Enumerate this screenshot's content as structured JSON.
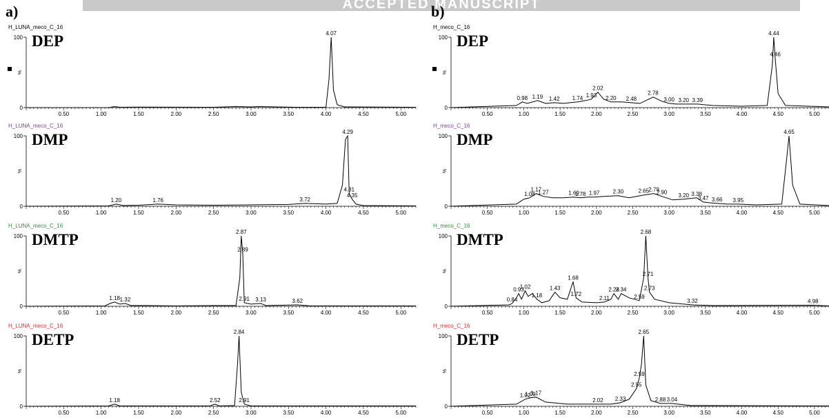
{
  "banner_text": "ACCEPTED MANUSCRIPT",
  "panel_letters": [
    "a)",
    "b)"
  ],
  "colors": {
    "trace": "#000000",
    "label_default": "#000000",
    "label_dmp": "#7b3f8f",
    "label_dmtp": "#2e8b3a",
    "label_detp": "#e0262b",
    "banner": "#c9c9c9"
  },
  "chart_data": [
    {
      "type": "line",
      "panel": "a",
      "label": "H_LUNA_meco_C_16",
      "label_color": "label_default",
      "compound": "DEP",
      "xlim": [
        0,
        5.2
      ],
      "ylim": [
        0,
        100
      ],
      "x_ticks": [
        "0.50",
        "1.00",
        "1.50",
        "2.00",
        "2.50",
        "3.00",
        "3.50",
        "4.00",
        "4.50",
        "5.00"
      ],
      "y_tick_labels": [
        "100",
        "%",
        "0"
      ],
      "marker": true,
      "series": [
        {
          "x": [
            0,
            1.1,
            1.18,
            1.25,
            1.5,
            2.0,
            2.5,
            2.8,
            3.0,
            3.1,
            3.6,
            4.0,
            4.04,
            4.07,
            4.1,
            4.15,
            4.25,
            5.2
          ],
          "y": [
            0,
            0,
            1.5,
            0.5,
            0.8,
            0.6,
            0.5,
            1.5,
            1,
            1.5,
            0.5,
            0.5,
            40,
            100,
            25,
            4,
            1,
            0.5
          ]
        }
      ],
      "peaks": [
        {
          "x": 4.07,
          "y": 100,
          "label": "4.07"
        }
      ]
    },
    {
      "type": "line",
      "panel": "a",
      "label": "H_LUNA_meco_C_16",
      "label_color": "label_dmp",
      "compound": "DMP",
      "xlim": [
        0,
        5.2
      ],
      "ylim": [
        0,
        100
      ],
      "x_ticks": [
        "0.50",
        "1.00",
        "1.50",
        "2.00",
        "2.50",
        "3.00",
        "3.50",
        "4.00",
        "4.50",
        "5.00"
      ],
      "y_tick_labels": [
        "100",
        "%",
        "0"
      ],
      "marker": false,
      "series": [
        {
          "x": [
            0,
            1.1,
            1.2,
            1.3,
            1.5,
            1.76,
            2.0,
            2.5,
            3.0,
            3.5,
            3.72,
            4.0,
            4.15,
            4.22,
            4.26,
            4.29,
            4.31,
            4.35,
            4.4,
            4.5,
            5.2
          ],
          "y": [
            0,
            0.5,
            3,
            1,
            1.5,
            3,
            2,
            1.5,
            2,
            2.5,
            4,
            3,
            4,
            30,
            95,
            100,
            18,
            10,
            3,
            1,
            0.5
          ]
        }
      ],
      "peaks": [
        {
          "x": 1.2,
          "y": 3,
          "label": "1.20"
        },
        {
          "x": 1.76,
          "y": 3,
          "label": "1.76"
        },
        {
          "x": 3.72,
          "y": 4,
          "label": "3.72"
        },
        {
          "x": 4.29,
          "y": 100,
          "label": "4.29"
        },
        {
          "x": 4.31,
          "y": 18,
          "label": "4.31"
        },
        {
          "x": 4.35,
          "y": 10,
          "label": "4.35"
        }
      ]
    },
    {
      "type": "line",
      "panel": "a",
      "label": "H_LUNA_meco_C_16",
      "label_color": "label_dmtp",
      "compound": "DMTP",
      "xlim": [
        0,
        5.2
      ],
      "ylim": [
        0,
        100
      ],
      "x_ticks": [
        "0.50",
        "1.00",
        "1.50",
        "2.00",
        "2.50",
        "3.00",
        "3.50",
        "4.00",
        "4.50",
        "5.00"
      ],
      "y_tick_labels": [
        "100",
        "%",
        "0"
      ],
      "marker": false,
      "series": [
        {
          "x": [
            0,
            1.05,
            1.12,
            1.18,
            1.25,
            1.32,
            1.4,
            1.6,
            2.0,
            2.5,
            2.8,
            2.85,
            2.87,
            2.89,
            2.91,
            3.0,
            3.13,
            3.2,
            3.62,
            3.8,
            5.2
          ],
          "y": [
            0,
            0.5,
            4,
            6,
            3,
            4,
            1,
            1,
            0.5,
            1,
            1,
            40,
            100,
            75,
            5,
            3,
            4,
            1,
            2,
            0.5,
            0.5
          ]
        }
      ],
      "peaks": [
        {
          "x": 1.18,
          "y": 6,
          "label": "1.18"
        },
        {
          "x": 1.32,
          "y": 4,
          "label": "1.32"
        },
        {
          "x": 2.87,
          "y": 100,
          "label": "2.87"
        },
        {
          "x": 2.89,
          "y": 75,
          "label": "2.89"
        },
        {
          "x": 2.91,
          "y": 5,
          "label": "2.91"
        },
        {
          "x": 3.13,
          "y": 4,
          "label": "3.13"
        },
        {
          "x": 3.62,
          "y": 2,
          "label": "3.62"
        }
      ]
    },
    {
      "type": "line",
      "panel": "a",
      "label": "H_LUNA_meco_C_16",
      "label_color": "label_detp",
      "compound": "DETP",
      "xlim": [
        0,
        5.2
      ],
      "ylim": [
        0,
        100
      ],
      "x_ticks": [
        "0.50",
        "1.00",
        "1.50",
        "2.00",
        "2.50",
        "3.00",
        "3.50",
        "4.00",
        "4.50",
        "5.00"
      ],
      "y_tick_labels": [
        "100",
        "%",
        "0"
      ],
      "marker": false,
      "series": [
        {
          "x": [
            0,
            1.1,
            1.18,
            1.25,
            2.45,
            2.52,
            2.58,
            2.78,
            2.82,
            2.84,
            2.87,
            2.91,
            3.0,
            5.2
          ],
          "y": [
            0,
            0.5,
            3,
            0.5,
            0.5,
            3,
            0.5,
            1,
            60,
            100,
            20,
            3,
            0.5,
            0.5
          ]
        }
      ],
      "peaks": [
        {
          "x": 1.18,
          "y": 3,
          "label": "1.18"
        },
        {
          "x": 2.52,
          "y": 3,
          "label": "2.52"
        },
        {
          "x": 2.84,
          "y": 100,
          "label": "2.84"
        },
        {
          "x": 2.91,
          "y": 3,
          "label": "2.91"
        }
      ]
    },
    {
      "type": "line",
      "panel": "b",
      "label": "H_meco_C_16",
      "label_color": "label_default",
      "compound": "DEP",
      "xlim": [
        0,
        5.2
      ],
      "ylim": [
        0,
        100
      ],
      "x_ticks": [
        "0.50",
        "1.00",
        "1.50",
        "2.00",
        "2.50",
        "3.00",
        "3.50",
        "4.00",
        "4.50",
        "5.00"
      ],
      "y_tick_labels": [
        "100",
        "%",
        "0"
      ],
      "marker": true,
      "series": [
        {
          "x": [
            0,
            0.9,
            0.98,
            1.05,
            1.19,
            1.3,
            1.42,
            1.55,
            1.74,
            1.85,
            1.93,
            2.02,
            2.1,
            2.2,
            2.35,
            2.48,
            2.6,
            2.78,
            2.9,
            3.0,
            3.1,
            3.2,
            3.3,
            3.39,
            3.6,
            4.0,
            4.35,
            4.42,
            4.44,
            4.46,
            4.5,
            4.6,
            5.2
          ],
          "y": [
            0,
            3,
            8,
            6,
            10,
            6,
            7,
            6,
            8,
            10,
            12,
            22,
            12,
            8,
            8,
            7,
            6,
            15,
            9,
            6,
            5,
            5,
            5,
            5,
            3,
            2,
            3,
            60,
            100,
            70,
            20,
            3,
            1
          ]
        }
      ],
      "peaks": [
        {
          "x": 0.98,
          "y": 8,
          "label": "0.98"
        },
        {
          "x": 1.19,
          "y": 10,
          "label": "1.19"
        },
        {
          "x": 1.42,
          "y": 7,
          "label": "1.42"
        },
        {
          "x": 1.74,
          "y": 8,
          "label": "1.74"
        },
        {
          "x": 1.93,
          "y": 12,
          "label": "1.93"
        },
        {
          "x": 2.02,
          "y": 22,
          "label": "2.02"
        },
        {
          "x": 2.2,
          "y": 8,
          "label": "2.20"
        },
        {
          "x": 2.48,
          "y": 7,
          "label": "2.48"
        },
        {
          "x": 2.78,
          "y": 15,
          "label": "2.78"
        },
        {
          "x": 3.0,
          "y": 6,
          "label": "3.00"
        },
        {
          "x": 3.2,
          "y": 5,
          "label": "3.20"
        },
        {
          "x": 3.39,
          "y": 5,
          "label": "3.39"
        },
        {
          "x": 4.44,
          "y": 100,
          "label": "4.44"
        },
        {
          "x": 4.46,
          "y": 70,
          "label": "4.46"
        }
      ]
    },
    {
      "type": "line",
      "panel": "b",
      "label": "H_meco_C_16",
      "label_color": "label_dmp",
      "compound": "DMP",
      "xlim": [
        0,
        5.2
      ],
      "ylim": [
        0,
        100
      ],
      "x_ticks": [
        "0.50",
        "1.00",
        "1.50",
        "2.00",
        "2.50",
        "3.00",
        "3.50",
        "4.00",
        "4.50",
        "5.00"
      ],
      "y_tick_labels": [
        "100",
        "%",
        "0"
      ],
      "marker": false,
      "series": [
        {
          "x": [
            0,
            0.9,
            1.0,
            1.08,
            1.17,
            1.27,
            1.4,
            1.55,
            1.69,
            1.78,
            1.88,
            1.97,
            2.1,
            2.3,
            2.45,
            2.65,
            2.79,
            2.9,
            3.05,
            3.2,
            3.38,
            3.47,
            3.55,
            3.66,
            3.8,
            3.95,
            4.2,
            4.55,
            4.62,
            4.65,
            4.7,
            4.8,
            5.2
          ],
          "y": [
            0,
            3,
            10,
            12,
            18,
            14,
            12,
            12,
            13,
            12,
            13,
            13,
            14,
            15,
            12,
            16,
            18,
            14,
            9,
            10,
            12,
            6,
            5,
            4,
            3,
            3,
            2,
            3,
            70,
            100,
            30,
            3,
            1
          ]
        }
      ],
      "peaks": [
        {
          "x": 1.08,
          "y": 12,
          "label": "1.08"
        },
        {
          "x": 1.17,
          "y": 18,
          "label": "1.17"
        },
        {
          "x": 1.27,
          "y": 14,
          "label": "1.27"
        },
        {
          "x": 1.69,
          "y": 13,
          "label": "1.69"
        },
        {
          "x": 1.78,
          "y": 12,
          "label": "1.78"
        },
        {
          "x": 1.97,
          "y": 13,
          "label": "1.97"
        },
        {
          "x": 2.3,
          "y": 15,
          "label": "2.30"
        },
        {
          "x": 2.65,
          "y": 16,
          "label": "2.65"
        },
        {
          "x": 2.79,
          "y": 18,
          "label": "2.79"
        },
        {
          "x": 2.9,
          "y": 14,
          "label": "2.90"
        },
        {
          "x": 3.2,
          "y": 10,
          "label": "3.20"
        },
        {
          "x": 3.38,
          "y": 12,
          "label": "3.38"
        },
        {
          "x": 3.47,
          "y": 6,
          "label": "3.47"
        },
        {
          "x": 3.66,
          "y": 4,
          "label": "3.66"
        },
        {
          "x": 3.95,
          "y": 3,
          "label": "3.95"
        },
        {
          "x": 4.65,
          "y": 100,
          "label": "4.65"
        }
      ]
    },
    {
      "type": "line",
      "panel": "b",
      "label": "H_meco_C_16",
      "label_color": "label_dmtp",
      "compound": "DMTP",
      "xlim": [
        0,
        5.2
      ],
      "ylim": [
        0,
        100
      ],
      "x_ticks": [
        "0.50",
        "1.00",
        "1.50",
        "2.00",
        "2.50",
        "3.00",
        "3.50",
        "4.00",
        "4.50",
        "5.00"
      ],
      "y_tick_labels": [
        "100",
        "%",
        "0"
      ],
      "marker": false,
      "series": [
        {
          "x": [
            0,
            0.8,
            0.84,
            0.9,
            0.93,
            0.97,
            1.02,
            1.06,
            1.12,
            1.18,
            1.25,
            1.35,
            1.43,
            1.5,
            1.6,
            1.68,
            1.72,
            1.8,
            2.0,
            2.11,
            2.2,
            2.24,
            2.3,
            2.34,
            2.45,
            2.59,
            2.65,
            2.68,
            2.71,
            2.73,
            2.8,
            3.0,
            3.32,
            3.6,
            4.98,
            5.2
          ],
          "y": [
            0,
            2,
            4,
            12,
            18,
            10,
            22,
            14,
            18,
            10,
            5,
            8,
            20,
            12,
            10,
            35,
            12,
            6,
            5,
            6,
            10,
            18,
            10,
            18,
            12,
            8,
            40,
            100,
            40,
            20,
            10,
            5,
            2,
            1,
            1.5,
            0.5
          ]
        }
      ],
      "peaks": [
        {
          "x": 0.84,
          "y": 4,
          "label": "0.84"
        },
        {
          "x": 0.93,
          "y": 18,
          "label": "0.93"
        },
        {
          "x": 1.02,
          "y": 22,
          "label": "1.02"
        },
        {
          "x": 1.18,
          "y": 10,
          "label": "1.18"
        },
        {
          "x": 1.43,
          "y": 20,
          "label": "1.43"
        },
        {
          "x": 1.68,
          "y": 35,
          "label": "1.68"
        },
        {
          "x": 1.72,
          "y": 12,
          "label": "1.72"
        },
        {
          "x": 2.11,
          "y": 6,
          "label": "2.11"
        },
        {
          "x": 2.24,
          "y": 18,
          "label": "2.24"
        },
        {
          "x": 2.34,
          "y": 18,
          "label": "2.34"
        },
        {
          "x": 2.59,
          "y": 8,
          "label": "2.59"
        },
        {
          "x": 2.68,
          "y": 100,
          "label": "2.68"
        },
        {
          "x": 2.71,
          "y": 40,
          "label": "2.71"
        },
        {
          "x": 2.73,
          "y": 20,
          "label": "2.73"
        },
        {
          "x": 3.32,
          "y": 2,
          "label": "3.32"
        },
        {
          "x": 4.98,
          "y": 1.5,
          "label": "4.98"
        }
      ]
    },
    {
      "type": "line",
      "panel": "b",
      "label": "H_meco_C_16",
      "label_color": "label_detp",
      "compound": "DETP",
      "xlim": [
        0,
        5.2
      ],
      "ylim": [
        0,
        100
      ],
      "x_ticks": [
        "0.50",
        "1.00",
        "1.50",
        "2.00",
        "2.50",
        "3.00",
        "3.50",
        "4.00",
        "4.50",
        "5.00"
      ],
      "y_tick_labels": [
        "100",
        "%",
        "0"
      ],
      "marker": false,
      "series": [
        {
          "x": [
            0,
            0.9,
            1.02,
            1.09,
            1.17,
            1.3,
            1.6,
            2.02,
            2.2,
            2.33,
            2.45,
            2.55,
            2.59,
            2.62,
            2.65,
            2.68,
            2.75,
            2.88,
            3.04,
            3.3,
            3.6,
            5.2
          ],
          "y": [
            0,
            3,
            10,
            12,
            13,
            6,
            3,
            3,
            3,
            5,
            10,
            25,
            40,
            60,
            100,
            30,
            8,
            4,
            4,
            1,
            1,
            0.5
          ]
        }
      ],
      "peaks": [
        {
          "x": 1.02,
          "y": 10,
          "label": "1.02"
        },
        {
          "x": 1.09,
          "y": 12,
          "label": "1.09"
        },
        {
          "x": 1.17,
          "y": 13,
          "label": "1.17"
        },
        {
          "x": 2.02,
          "y": 3,
          "label": "2.02"
        },
        {
          "x": 2.33,
          "y": 5,
          "label": "2.33"
        },
        {
          "x": 2.55,
          "y": 25,
          "label": "2.55"
        },
        {
          "x": 2.59,
          "y": 40,
          "label": "2.59"
        },
        {
          "x": 2.65,
          "y": 100,
          "label": "2.65"
        },
        {
          "x": 2.88,
          "y": 4,
          "label": "2.88"
        },
        {
          "x": 3.04,
          "y": 4,
          "label": "3.04"
        }
      ]
    }
  ]
}
